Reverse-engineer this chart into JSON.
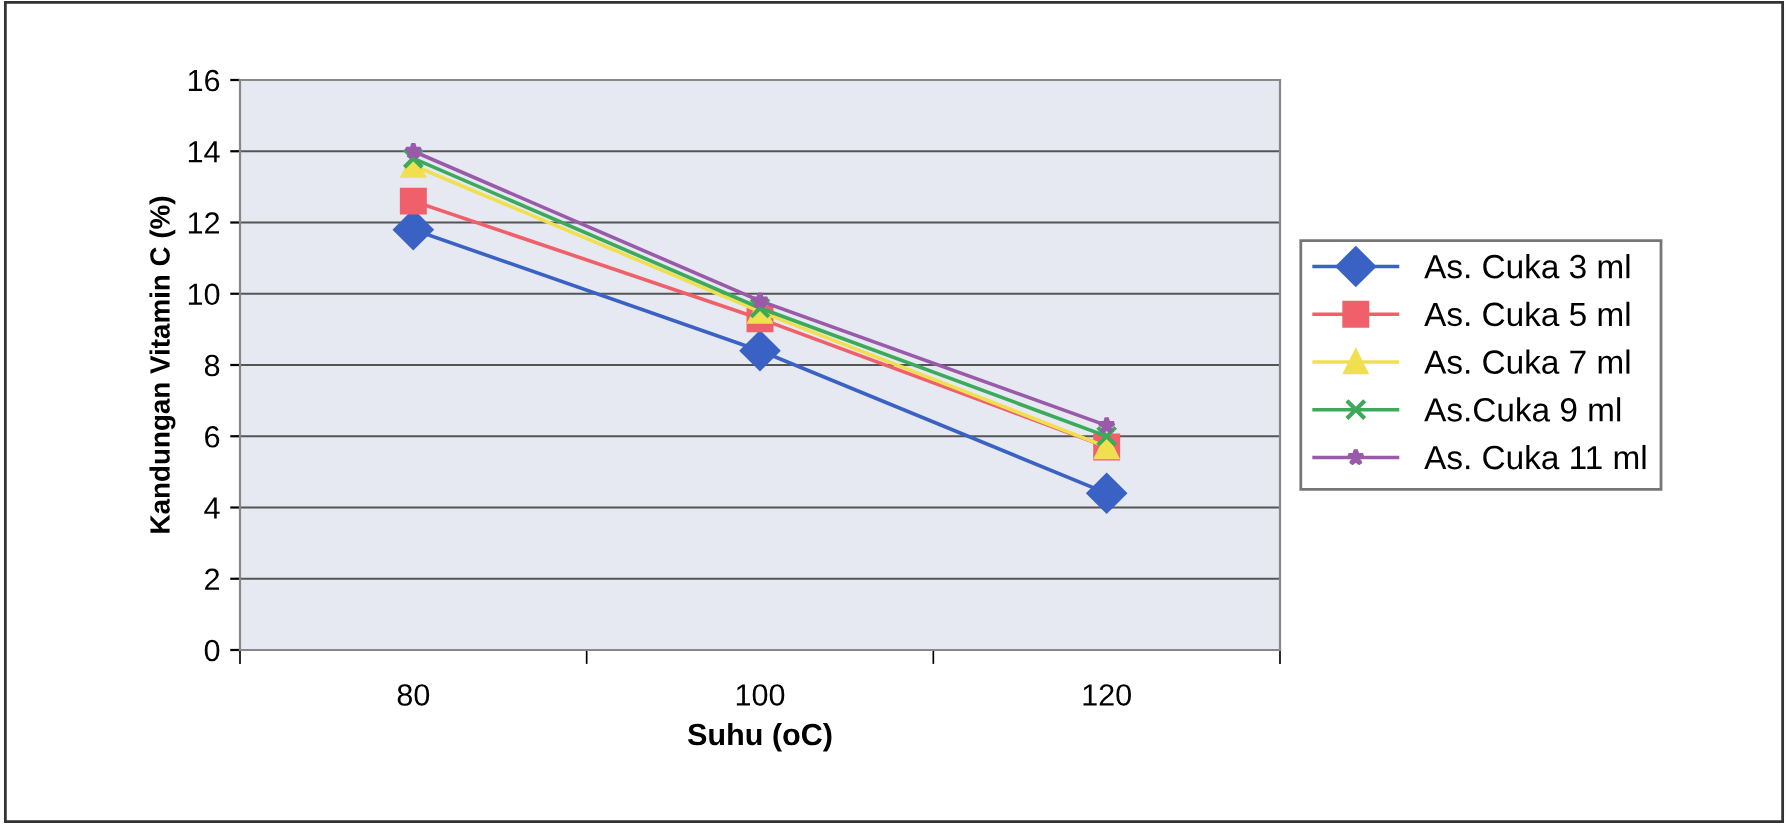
{
  "chart_data": {
    "type": "line",
    "xlabel": "Suhu (oC)",
    "ylabel": "Kandungan Vitamin C (%)",
    "categories": [
      "80",
      "100",
      "120"
    ],
    "series": [
      {
        "name": "As. Cuka 3 ml",
        "color": "#3a62c4",
        "marker": "diamond",
        "values": [
          11.8,
          8.4,
          4.4
        ]
      },
      {
        "name": "As. Cuka 5 ml",
        "color": "#f0606a",
        "marker": "square",
        "values": [
          12.6,
          9.3,
          5.7
        ]
      },
      {
        "name": "As. Cuka 7 ml",
        "color": "#f0e050",
        "marker": "triangle",
        "values": [
          13.6,
          9.5,
          5.7
        ]
      },
      {
        "name": "As.Cuka 9 ml",
        "color": "#3caa5a",
        "marker": "cross",
        "values": [
          13.8,
          9.6,
          6.0
        ]
      },
      {
        "name": "As. Cuka 11 ml",
        "color": "#9a5aaa",
        "marker": "star",
        "values": [
          14.0,
          9.8,
          6.3
        ]
      }
    ],
    "ylim": [
      0,
      16
    ],
    "yticks": [
      0,
      2,
      4,
      6,
      8,
      10,
      12,
      14,
      16
    ],
    "grid": "y",
    "legend": "right",
    "line_style": "solid"
  }
}
